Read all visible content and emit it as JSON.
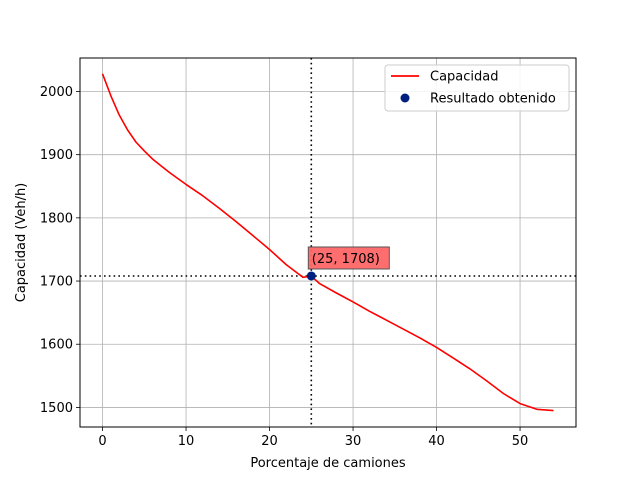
{
  "chart_data": {
    "type": "line",
    "title": "",
    "xlabel": "Porcentaje de camiones",
    "ylabel": "Capacidad (Veh/h)",
    "xlim": [
      -2.7,
      56.7
    ],
    "ylim": [
      1469,
      2053
    ],
    "xticks": [
      0,
      10,
      20,
      30,
      40,
      50
    ],
    "yticks": [
      1500,
      1600,
      1700,
      1800,
      1900,
      2000
    ],
    "grid": true,
    "legend_position": "upper right",
    "series": [
      {
        "name": "Capacidad",
        "kind": "line",
        "color": "#ff0000",
        "x": [
          0,
          1,
          2,
          3,
          4,
          5,
          6,
          8,
          10,
          12,
          14,
          16,
          18,
          20,
          22,
          24,
          25,
          26,
          28,
          30,
          32,
          34,
          36,
          38,
          40,
          42,
          44,
          46,
          48,
          50,
          52,
          54
        ],
        "y": [
          2028,
          1993,
          1963,
          1939,
          1920,
          1906,
          1893,
          1872,
          1853,
          1835,
          1815,
          1794,
          1772,
          1750,
          1726,
          1706,
          1708,
          1696,
          1681,
          1667,
          1652,
          1638,
          1624,
          1610,
          1595,
          1578,
          1561,
          1542,
          1522,
          1506,
          1497,
          1495
        ]
      },
      {
        "name": "Resultado obtenido",
        "kind": "scatter",
        "color": "#00207f",
        "x": [
          25
        ],
        "y": [
          1708
        ]
      }
    ],
    "reference_lines": {
      "x": 25,
      "y": 1708,
      "style": "dotted",
      "color": "#000000"
    },
    "annotation": {
      "text": "(25, 1708)",
      "x": 25,
      "y": 1708,
      "background": "#ff6666"
    }
  }
}
